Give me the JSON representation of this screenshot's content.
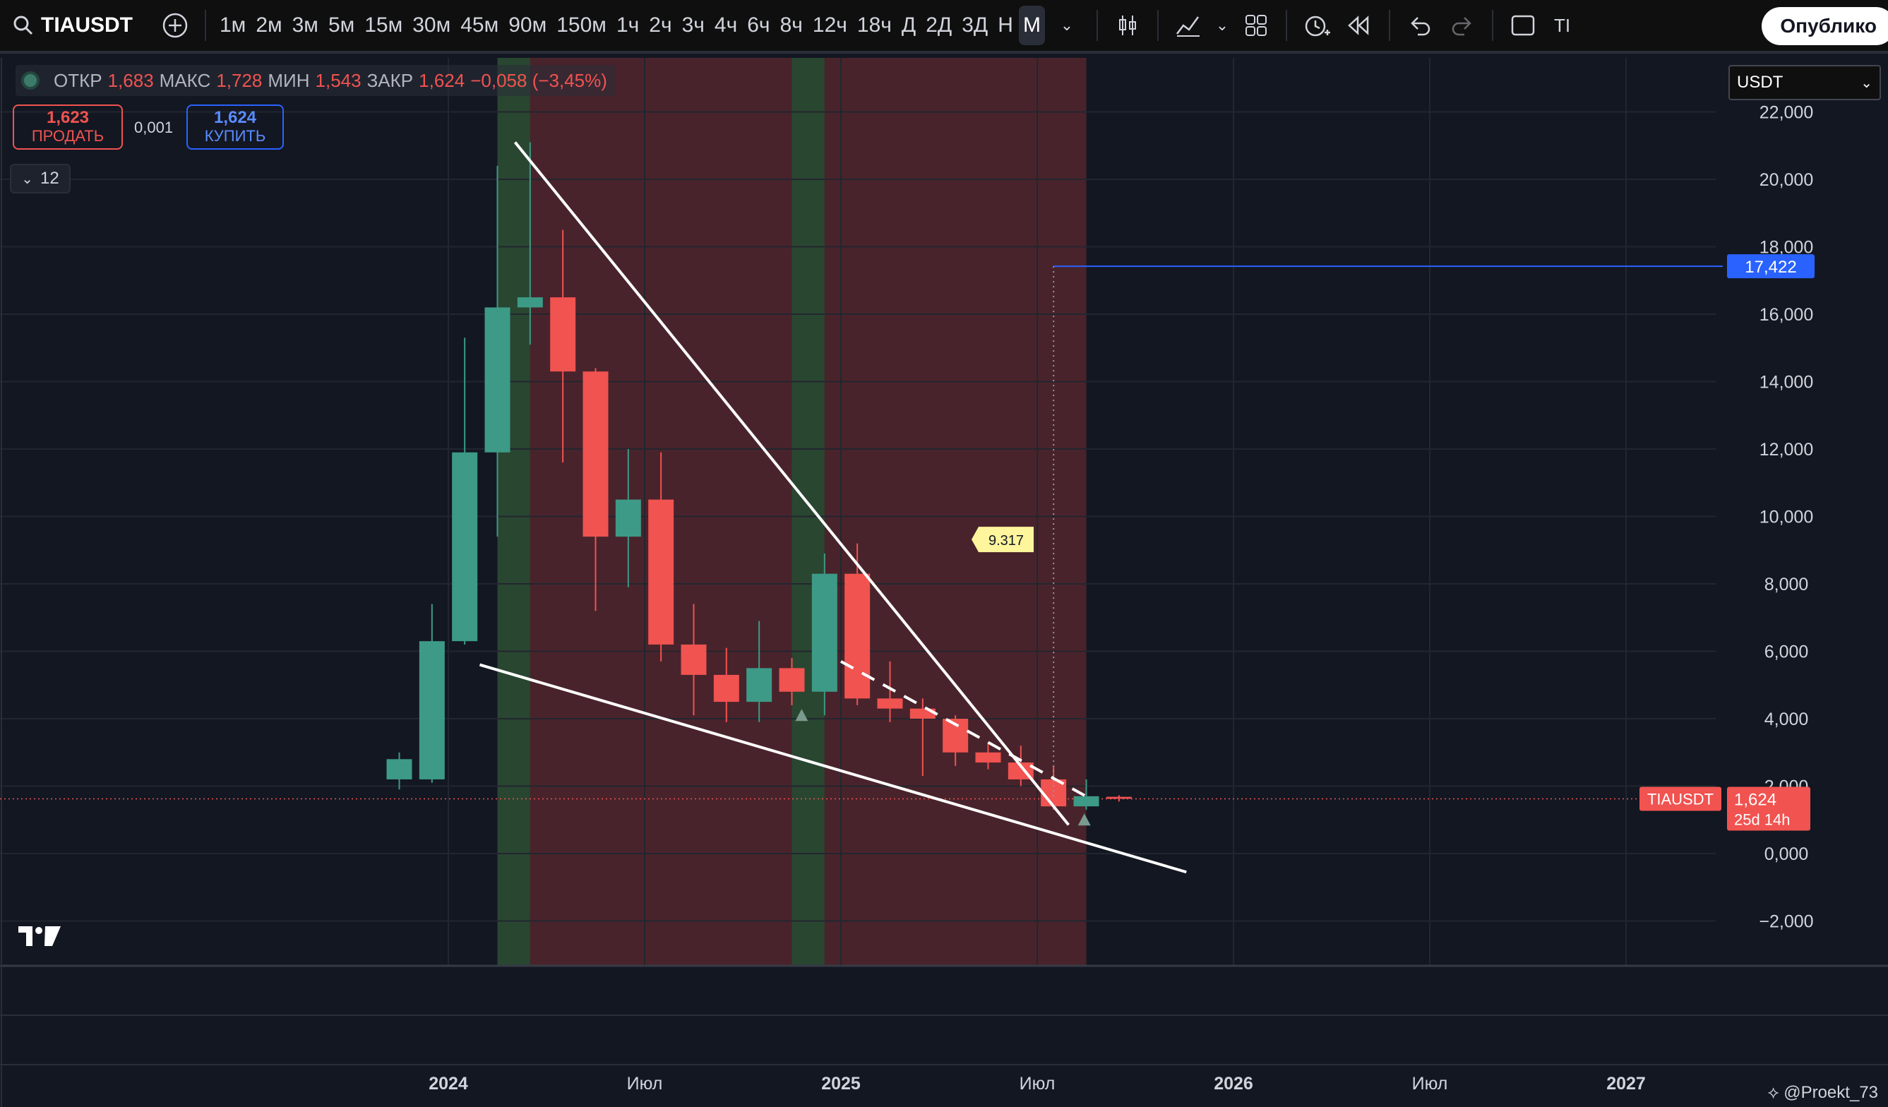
{
  "toolbar": {
    "symbol": "TIAUSDT",
    "timeframes": [
      "1м",
      "2м",
      "3м",
      "5м",
      "15м",
      "30м",
      "45м",
      "90м",
      "150м",
      "1ч",
      "2ч",
      "3ч",
      "4ч",
      "6ч",
      "8ч",
      "12ч",
      "18ч",
      "Д",
      "2Д",
      "3Д",
      "Н",
      "М"
    ],
    "active_timeframe": "М",
    "publish_label": "Опублико",
    "extra_label": "TI"
  },
  "legend": {
    "open_label": "ОТКР",
    "open": "1,683",
    "high_label": "МАКС",
    "high": "1,728",
    "low_label": "МИН",
    "low": "1,543",
    "close_label": "ЗАКР",
    "close": "1,624",
    "change": "−0,058 (−3,45%)"
  },
  "trade": {
    "sell_price": "1,623",
    "sell_label": "ПРОДАТЬ",
    "spread": "0,001",
    "buy_price": "1,624",
    "buy_label": "КУПИТЬ"
  },
  "indicator_collapse": "12",
  "currency_select": "USDT",
  "watermark": "@Proekt_73",
  "colors": {
    "up": "#3d9a86",
    "down": "#f05350",
    "background": "#131722",
    "target_line": "#2962ff"
  },
  "chart_data": {
    "type": "candlestick",
    "y_ticks": [
      "22,000",
      "20,000",
      "18,000",
      "16,000",
      "14,000",
      "12,000",
      "10,000",
      "8,000",
      "6,000",
      "4,000",
      "2,000",
      "0,000",
      "−2,000"
    ],
    "ylim": [
      -3.3,
      23.3
    ],
    "x_ticks": [
      {
        "label": "2024",
        "t": 2024.0,
        "bold": true
      },
      {
        "label": "Июл",
        "t": 2024.5,
        "bold": false
      },
      {
        "label": "2025",
        "t": 2025.0,
        "bold": true
      },
      {
        "label": "Июл",
        "t": 2025.5,
        "bold": false
      },
      {
        "label": "2026",
        "t": 2026.0,
        "bold": true
      },
      {
        "label": "Июл",
        "t": 2026.5,
        "bold": false
      },
      {
        "label": "2027",
        "t": 2027.0,
        "bold": true
      }
    ],
    "candles": [
      {
        "date": "2023-11",
        "o": 2.2,
        "h": 3.0,
        "l": 1.9,
        "c": 2.8
      },
      {
        "date": "2023-12",
        "o": 2.2,
        "h": 7.4,
        "l": 2.1,
        "c": 6.3
      },
      {
        "date": "2024-01",
        "o": 6.3,
        "h": 15.3,
        "l": 6.2,
        "c": 11.9
      },
      {
        "date": "2024-02",
        "o": 11.9,
        "h": 20.4,
        "l": 9.4,
        "c": 16.2
      },
      {
        "date": "2024-03",
        "o": 16.2,
        "h": 21.1,
        "l": 15.1,
        "c": 16.5
      },
      {
        "date": "2024-04",
        "o": 16.5,
        "h": 18.5,
        "l": 11.6,
        "c": 14.3
      },
      {
        "date": "2024-05",
        "o": 14.3,
        "h": 14.4,
        "l": 7.2,
        "c": 9.4
      },
      {
        "date": "2024-06",
        "o": 9.4,
        "h": 12.0,
        "l": 7.9,
        "c": 10.5
      },
      {
        "date": "2024-07",
        "o": 10.5,
        "h": 11.9,
        "l": 5.7,
        "c": 6.2
      },
      {
        "date": "2024-08",
        "o": 6.2,
        "h": 7.4,
        "l": 4.1,
        "c": 5.3
      },
      {
        "date": "2024-09",
        "o": 5.3,
        "h": 6.1,
        "l": 3.9,
        "c": 4.5
      },
      {
        "date": "2024-10",
        "o": 4.5,
        "h": 6.9,
        "l": 3.9,
        "c": 5.5
      },
      {
        "date": "2024-11",
        "o": 5.5,
        "h": 5.8,
        "l": 4.4,
        "c": 4.8
      },
      {
        "date": "2024-12",
        "o": 4.8,
        "h": 8.9,
        "l": 4.1,
        "c": 8.3
      },
      {
        "date": "2025-01",
        "o": 8.3,
        "h": 9.2,
        "l": 4.4,
        "c": 4.6
      },
      {
        "date": "2025-02",
        "o": 4.6,
        "h": 5.7,
        "l": 3.9,
        "c": 4.3
      },
      {
        "date": "2025-03",
        "o": 4.3,
        "h": 4.6,
        "l": 2.3,
        "c": 4.0
      },
      {
        "date": "2025-04",
        "o": 4.0,
        "h": 4.1,
        "l": 2.6,
        "c": 3.0
      },
      {
        "date": "2025-05",
        "o": 3.0,
        "h": 3.3,
        "l": 2.5,
        "c": 2.7
      },
      {
        "date": "2025-06",
        "o": 2.7,
        "h": 3.2,
        "l": 2.0,
        "c": 2.2
      },
      {
        "date": "2025-07",
        "o": 2.2,
        "h": 2.6,
        "l": 1.3,
        "c": 1.4
      },
      {
        "date": "2025-08",
        "o": 1.4,
        "h": 2.2,
        "l": 1.3,
        "c": 1.7
      },
      {
        "date": "2025-09",
        "o": 1.683,
        "h": 1.728,
        "l": 1.543,
        "c": 1.624
      }
    ],
    "target_level": "17,422",
    "target_value": 17.422,
    "annotation_label": "9.317",
    "annotation_value": 9.317,
    "price_label_symbol": "TIAUSDT",
    "last_price": "1,624",
    "last_value": 1.624,
    "countdown": "25d 14h"
  }
}
